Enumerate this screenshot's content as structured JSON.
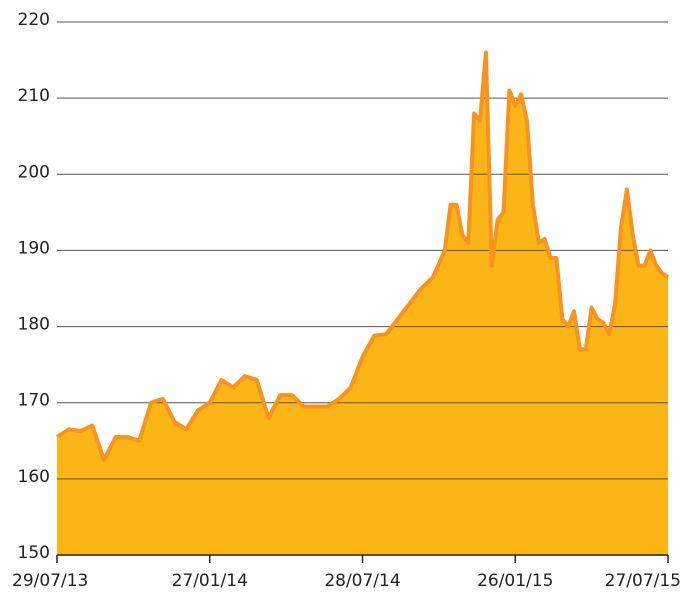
{
  "chart_data": {
    "type": "area",
    "x": [
      "29/07/13",
      "12/08/13",
      "26/08/13",
      "09/09/13",
      "23/09/13",
      "07/10/13",
      "21/10/13",
      "04/11/13",
      "18/11/13",
      "02/12/13",
      "16/12/13",
      "30/12/13",
      "13/01/14",
      "27/01/14",
      "10/02/14",
      "24/02/14",
      "10/03/14",
      "24/03/14",
      "07/04/14",
      "21/04/14",
      "05/05/14",
      "19/05/14",
      "02/06/14",
      "16/06/14",
      "30/06/14",
      "14/07/14",
      "28/07/14",
      "11/08/14",
      "25/08/14",
      "08/09/14",
      "22/09/14",
      "06/10/14",
      "20/10/14",
      "03/11/14",
      "10/11/14",
      "17/11/14",
      "24/11/14",
      "01/12/14",
      "08/12/14",
      "15/12/14",
      "22/12/14",
      "29/12/14",
      "05/01/15",
      "12/01/15",
      "19/01/15",
      "26/01/15",
      "02/02/15",
      "09/02/15",
      "16/02/15",
      "23/02/15",
      "02/03/15",
      "09/03/15",
      "16/03/15",
      "23/03/15",
      "30/03/15",
      "06/04/15",
      "13/04/15",
      "20/04/15",
      "27/04/15",
      "04/05/15",
      "11/05/15",
      "18/05/15",
      "25/05/15",
      "01/06/15",
      "08/06/15",
      "15/06/15",
      "22/06/15",
      "29/06/15",
      "06/07/15",
      "13/07/15",
      "20/07/15",
      "27/07/15"
    ],
    "series": [
      {
        "color": "#fbb516",
        "line_color": "#f7931e",
        "values": [
          165.5,
          166.5,
          166.3,
          167,
          162.5,
          165.5,
          165.5,
          165,
          170,
          170.5,
          167.5,
          166.5,
          169,
          170,
          173,
          172,
          173.5,
          173,
          168,
          171,
          171,
          169.5,
          169.5,
          169.5,
          170.5,
          172,
          176,
          178.8,
          179,
          181,
          183,
          185,
          186.5,
          190,
          196,
          196,
          192,
          191,
          208,
          207,
          216,
          188,
          194,
          195,
          211,
          209,
          210.5,
          207,
          196,
          191,
          191.5,
          189,
          189,
          181,
          180,
          182,
          177,
          177,
          182.5,
          181,
          180.5,
          179,
          183,
          193,
          198,
          192,
          188,
          188,
          190,
          188,
          187,
          186.5
        ]
      }
    ],
    "xlim": [
      "29/07/13",
      "27/07/15"
    ],
    "xticks": [
      "29/07/13",
      "27/01/14",
      "28/07/14",
      "26/01/15",
      "27/07/15"
    ],
    "ylim": [
      150,
      220
    ],
    "yticks": [
      150,
      160,
      170,
      180,
      190,
      200,
      210,
      220
    ],
    "grid": true
  }
}
